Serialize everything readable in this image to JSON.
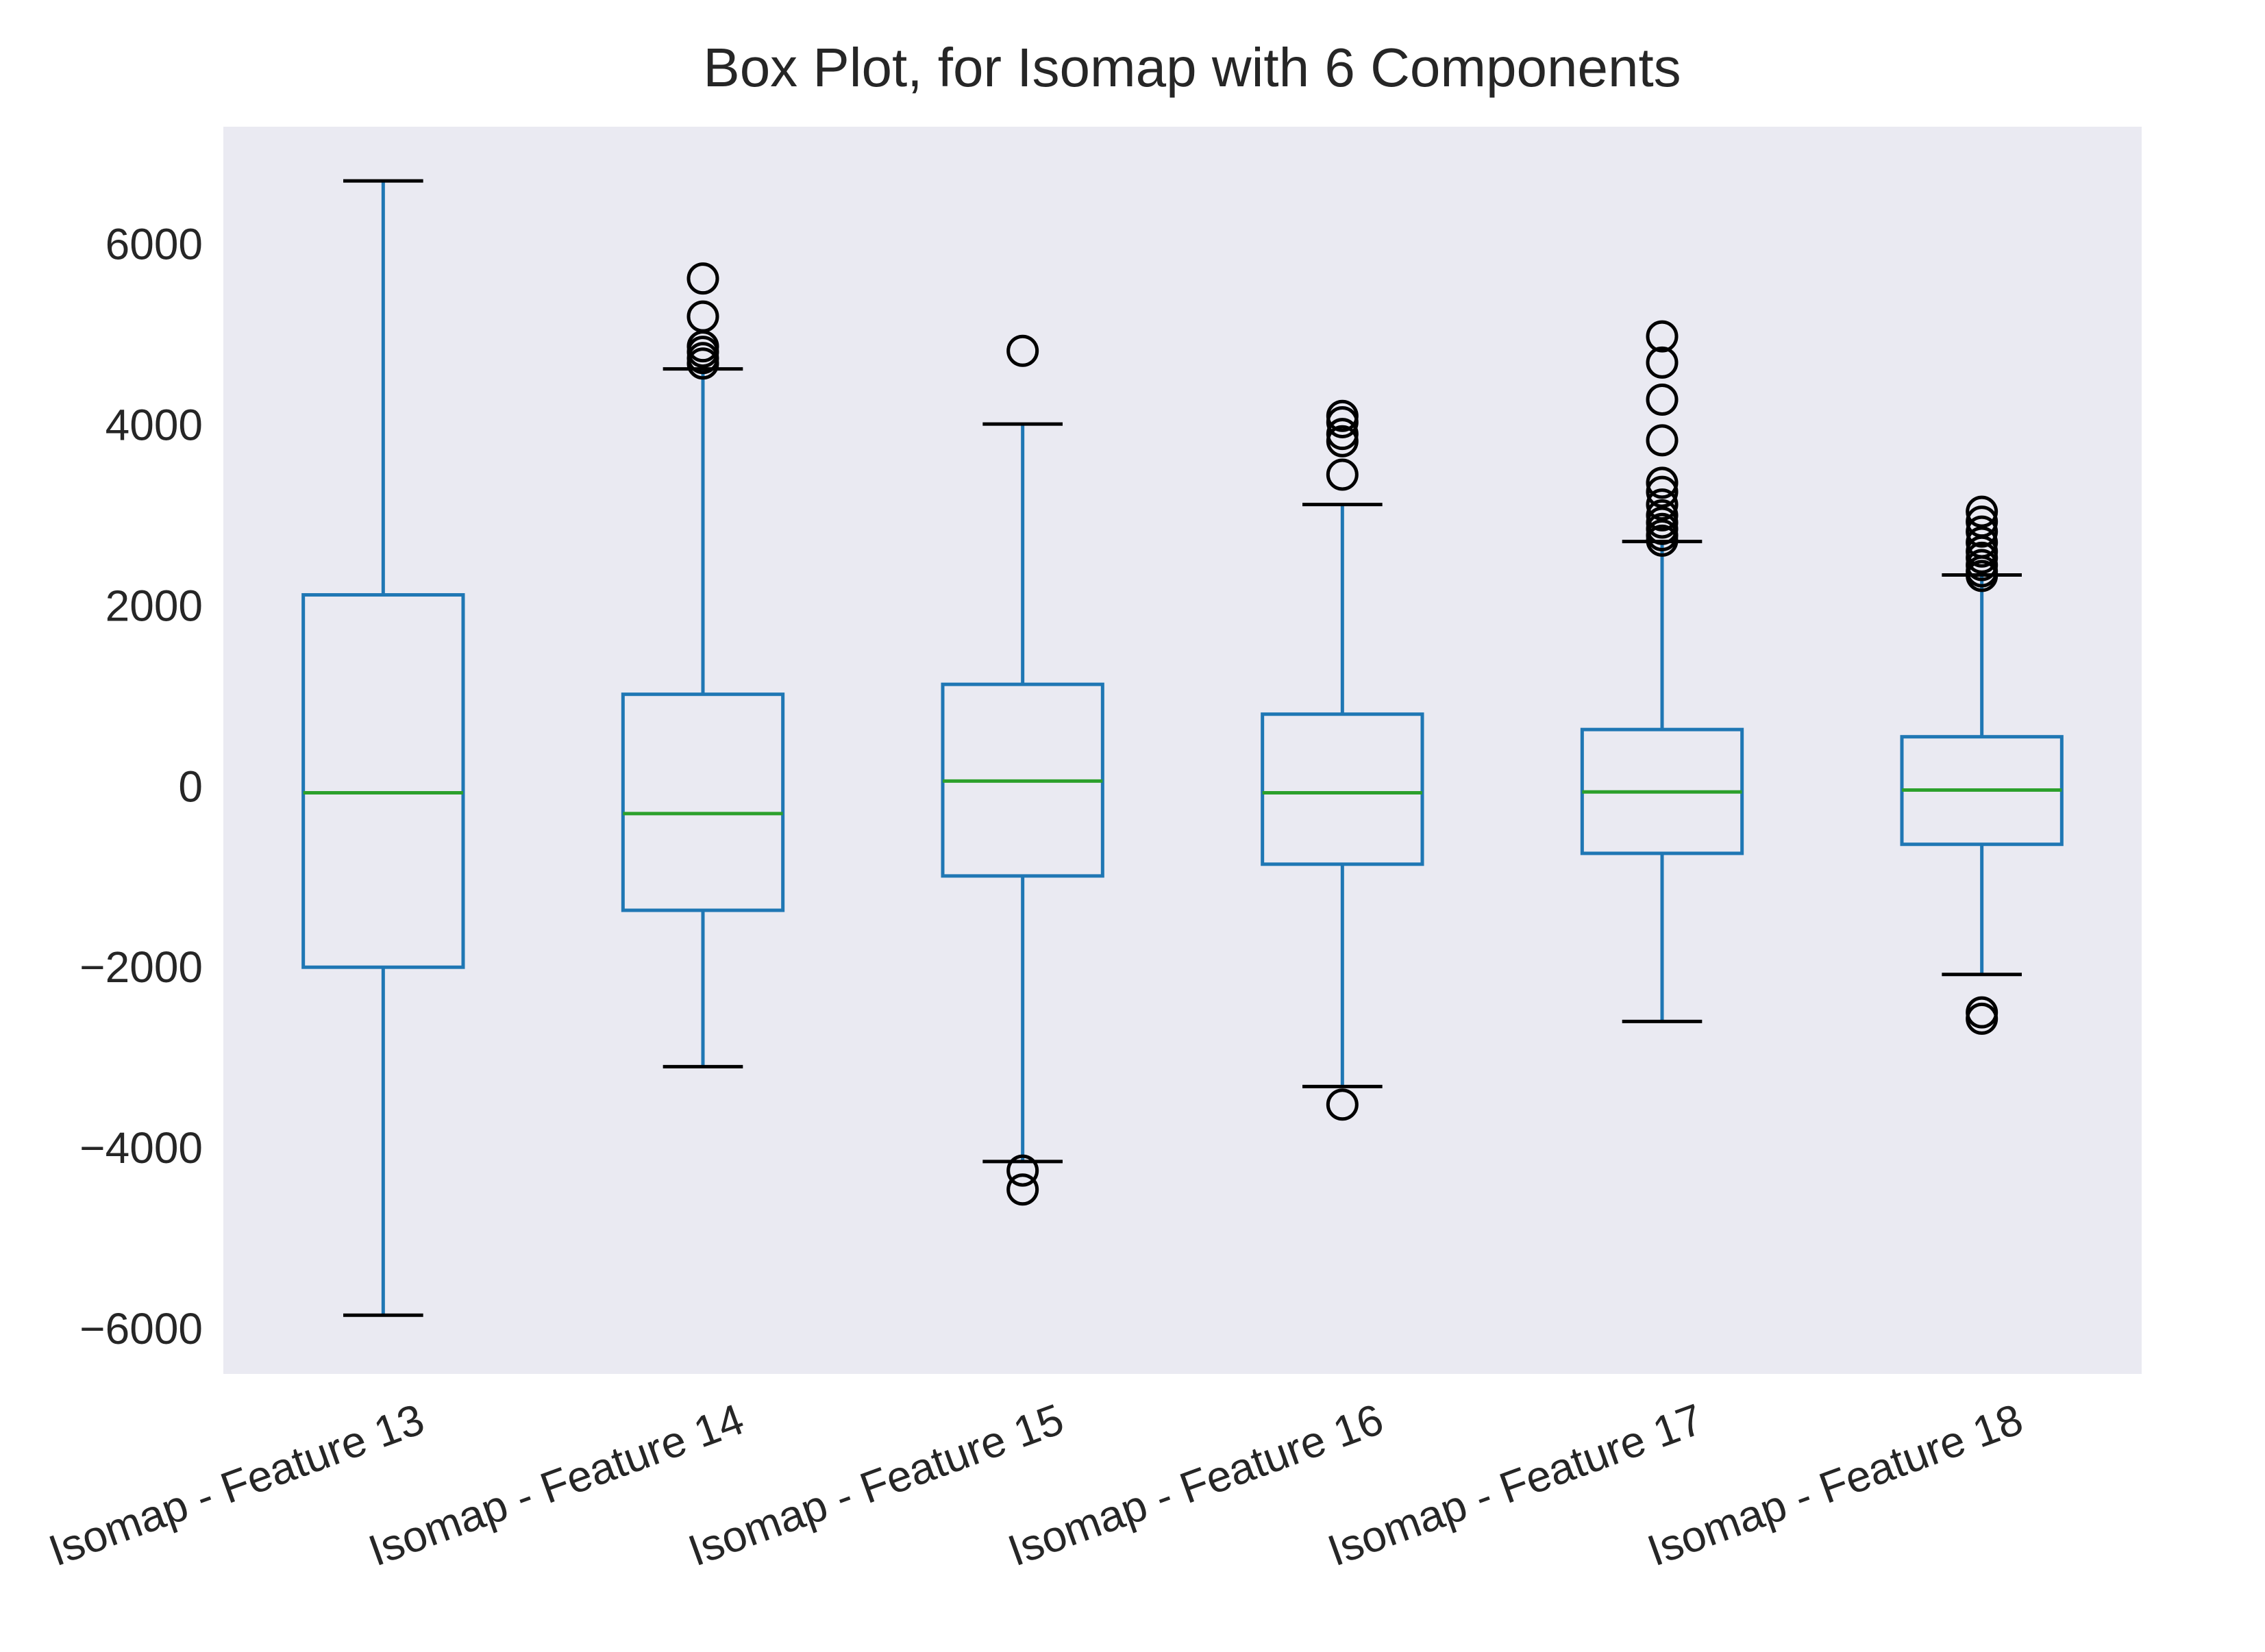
{
  "chart_data": {
    "type": "box",
    "title": "Box Plot, for Isomap with 6 Components",
    "xlabel": "",
    "ylabel": "",
    "ylim": [
      -6500,
      7300
    ],
    "grid": false,
    "yticks": [
      -6000,
      -4000,
      -2000,
      0,
      2000,
      4000,
      6000
    ],
    "ytick_labels": [
      "−6000",
      "−4000",
      "−2000",
      "0",
      "2000",
      "4000",
      "6000"
    ],
    "colors": {
      "background": "#eaeaf2",
      "box": "#1f77b4",
      "median": "#2ca02c",
      "caps_and_fliers": "#000000"
    },
    "categories": [
      "Isomap - Feature 13",
      "Isomap - Feature 14",
      "Isomap - Feature 15",
      "Isomap - Feature 16",
      "Isomap - Feature 17",
      "Isomap - Feature 18"
    ],
    "boxes": [
      {
        "whislo": -5850,
        "q1": -2000,
        "med": -70,
        "q3": 2120,
        "whishi": 6700,
        "fliers": []
      },
      {
        "whislo": -3100,
        "q1": -1370,
        "med": -300,
        "q3": 1020,
        "whishi": 4620,
        "fliers": [
          4680,
          4740,
          4810,
          4870,
          5200,
          5620
        ]
      },
      {
        "whislo": -4150,
        "q1": -990,
        "med": 60,
        "q3": 1130,
        "whishi": 4010,
        "fliers": [
          4820,
          -4250,
          -4460
        ]
      },
      {
        "whislo": -3320,
        "q1": -860,
        "med": -70,
        "q3": 800,
        "whishi": 3120,
        "fliers": [
          3450,
          3820,
          3900,
          4030,
          4100,
          -3520
        ]
      },
      {
        "whislo": -2600,
        "q1": -740,
        "med": -60,
        "q3": 630,
        "whishi": 2710,
        "fliers": [
          2720,
          2780,
          2850,
          2920,
          3000,
          3120,
          3260,
          3360,
          3830,
          4280,
          4690,
          4980
        ]
      },
      {
        "whislo": -2080,
        "q1": -640,
        "med": -40,
        "q3": 550,
        "whishi": 2340,
        "fliers": [
          2330,
          2380,
          2450,
          2530,
          2600,
          2700,
          2820,
          2930,
          3040,
          -2500,
          -2570
        ]
      }
    ]
  }
}
